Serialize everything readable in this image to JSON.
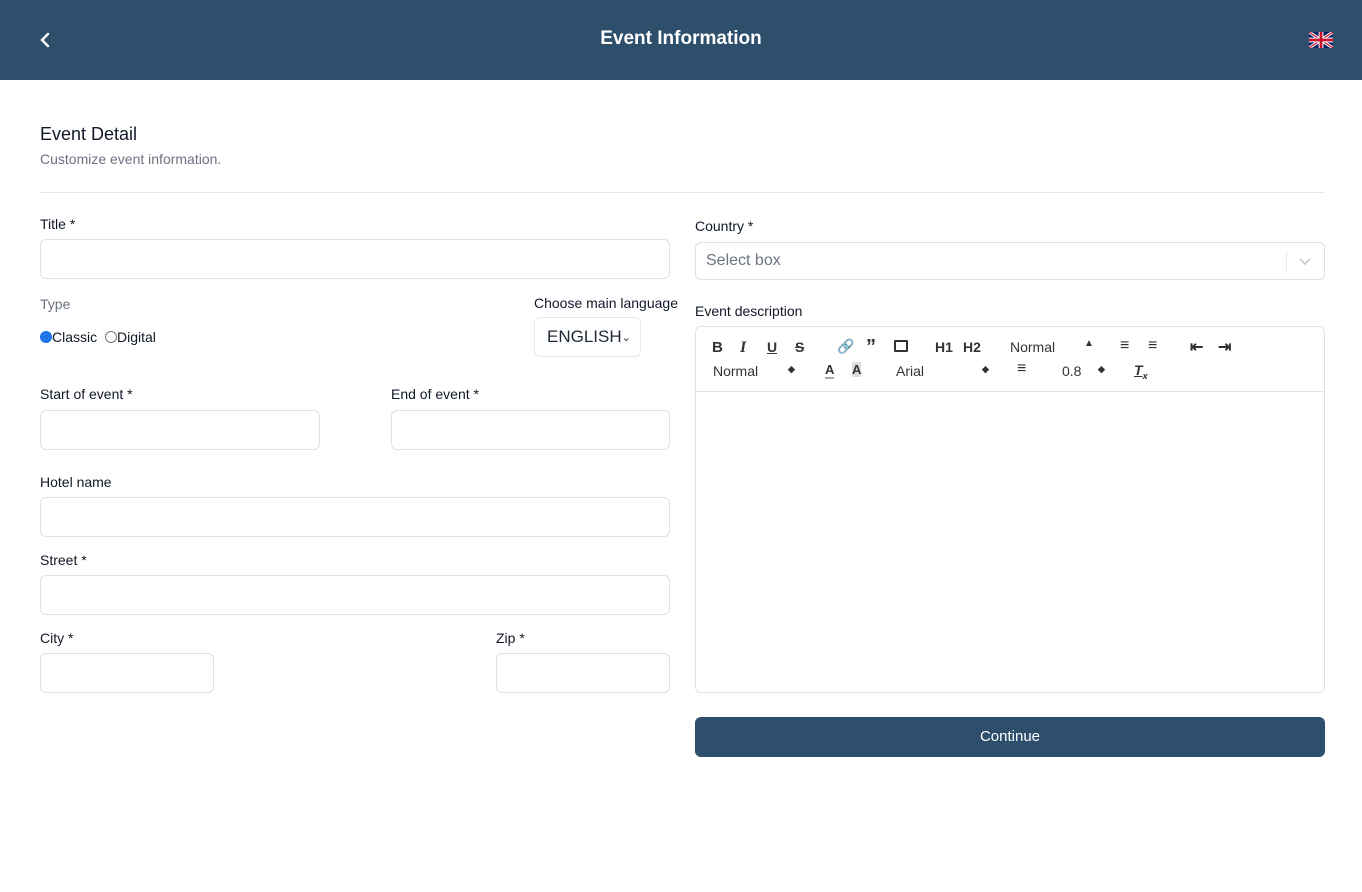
{
  "header": {
    "title": "Event Information",
    "back_icon": "chevron-left-icon",
    "flag_icon": "uk-flag-icon"
  },
  "section": {
    "title": "Event Detail",
    "subtitle": "Customize event information."
  },
  "form": {
    "title_label": "Title *",
    "title_value": "",
    "type_label": "Type",
    "type_options": [
      "Classic",
      "Digital"
    ],
    "type_selected": "Classic",
    "language_label": "Choose main language",
    "language_value": "ENGLISH",
    "start_label": "Start of event *",
    "end_label": "End of event *",
    "hotel_label": "Hotel name",
    "street_label": "Street *",
    "city_label": "City *",
    "zip_label": "Zip *",
    "country_label": "Country *",
    "country_placeholder": "Select box",
    "description_label": "Event description",
    "toolbar": {
      "header_select": "Normal",
      "size_select": "Normal",
      "font_select": "Arial",
      "line_height": "0.8",
      "h1": "H1",
      "h2": "H2"
    }
  },
  "continue_label": "Continue",
  "colors": {
    "primary": "#2d4f6b",
    "radio": "#1a73e8"
  }
}
